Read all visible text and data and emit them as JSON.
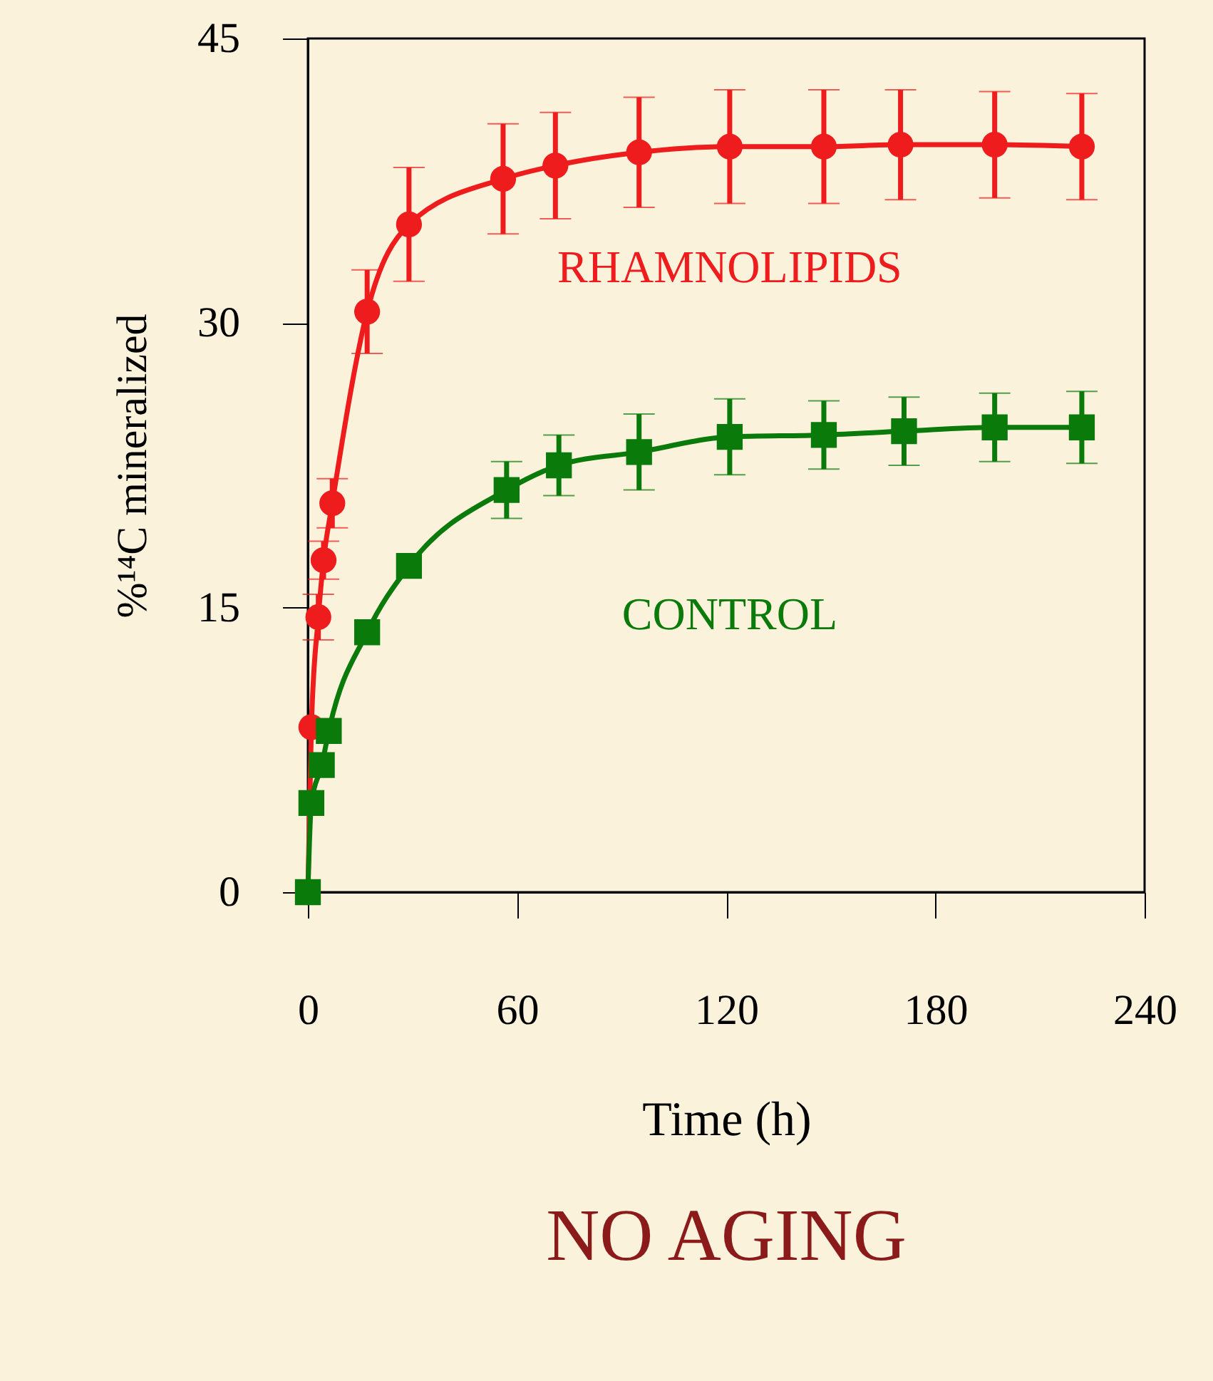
{
  "chart_data": {
    "type": "line",
    "title": "NO AGING",
    "xlabel": "Time (h)",
    "ylabel": "%¹⁴C mineralized",
    "xlim": [
      0,
      240
    ],
    "xticks": [
      0,
      60,
      120,
      180,
      240
    ],
    "ylim": [
      0,
      45
    ],
    "yticks": [
      0,
      15,
      30,
      45
    ],
    "grid": false,
    "line_style": "solid",
    "series": [
      {
        "name": "RHAMNOLIPIDS",
        "color": "#ee1c1c",
        "marker": "circle",
        "x": [
          0,
          1,
          3,
          4.5,
          7,
          17,
          29,
          56,
          71,
          95,
          121,
          148,
          170,
          197,
          222
        ],
        "values": [
          0,
          8.7,
          14.5,
          17.5,
          20.5,
          30.6,
          35.2,
          37.6,
          38.3,
          39.0,
          39.3,
          39.3,
          39.4,
          39.4,
          39.3
        ],
        "errors": [
          null,
          null,
          1.2,
          1.0,
          1.3,
          2.2,
          3.0,
          2.9,
          2.8,
          2.9,
          3.0,
          3.0,
          2.9,
          2.8,
          2.8
        ]
      },
      {
        "name": "CONTROL",
        "color": "#0a7a0a",
        "marker": "square",
        "x": [
          0,
          1,
          4,
          6,
          17,
          29,
          57,
          72,
          95,
          121,
          148,
          171,
          197,
          222
        ],
        "values": [
          0,
          4.7,
          6.7,
          8.5,
          13.7,
          17.2,
          21.2,
          22.5,
          23.2,
          24.0,
          24.1,
          24.3,
          24.5,
          24.5
        ],
        "errors": [
          null,
          null,
          null,
          null,
          null,
          null,
          1.5,
          1.6,
          2.0,
          2.0,
          1.8,
          1.8,
          1.8,
          1.9
        ]
      }
    ]
  }
}
